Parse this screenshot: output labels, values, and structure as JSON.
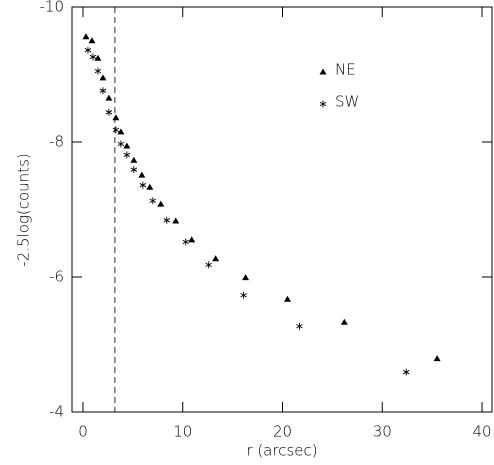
{
  "chart_data": {
    "type": "scatter",
    "xlabel": "r (arcsec)",
    "ylabel": "-2.5log(counts)",
    "xlim": [
      -1.1,
      41
    ],
    "ylim": [
      -4,
      -10
    ],
    "xticks": [
      0,
      10,
      20,
      30,
      40
    ],
    "yticks": [
      -10,
      -8,
      -6,
      -4
    ],
    "vline": 3.2,
    "legend": "upper right",
    "series": [
      {
        "name": "NE",
        "marker": "triangle",
        "color": "#000000",
        "x": [
          0.3,
          0.9,
          1.5,
          2.0,
          2.6,
          3.3,
          3.8,
          4.4,
          5.1,
          5.9,
          6.7,
          7.8,
          9.3,
          10.9,
          13.3,
          16.3,
          20.5,
          26.2,
          35.5
        ],
        "values": [
          -9.56,
          -9.5,
          -9.24,
          -8.95,
          -8.65,
          -8.36,
          -8.15,
          -7.94,
          -7.73,
          -7.51,
          -7.33,
          -7.08,
          -6.83,
          -6.55,
          -6.27,
          -5.99,
          -5.67,
          -5.33,
          -4.79
        ]
      },
      {
        "name": "SW",
        "marker": "asterisk",
        "color": "#000000",
        "x": [
          0.5,
          1.0,
          1.5,
          2.0,
          2.6,
          3.3,
          3.8,
          4.4,
          5.1,
          6.0,
          7.0,
          8.4,
          10.3,
          12.6,
          16.1,
          21.7,
          32.4
        ],
        "values": [
          -9.36,
          -9.26,
          -9.05,
          -8.76,
          -8.44,
          -8.18,
          -7.97,
          -7.81,
          -7.59,
          -7.36,
          -7.13,
          -6.84,
          -6.52,
          -6.18,
          -5.73,
          -5.27,
          -4.59
        ]
      }
    ]
  }
}
